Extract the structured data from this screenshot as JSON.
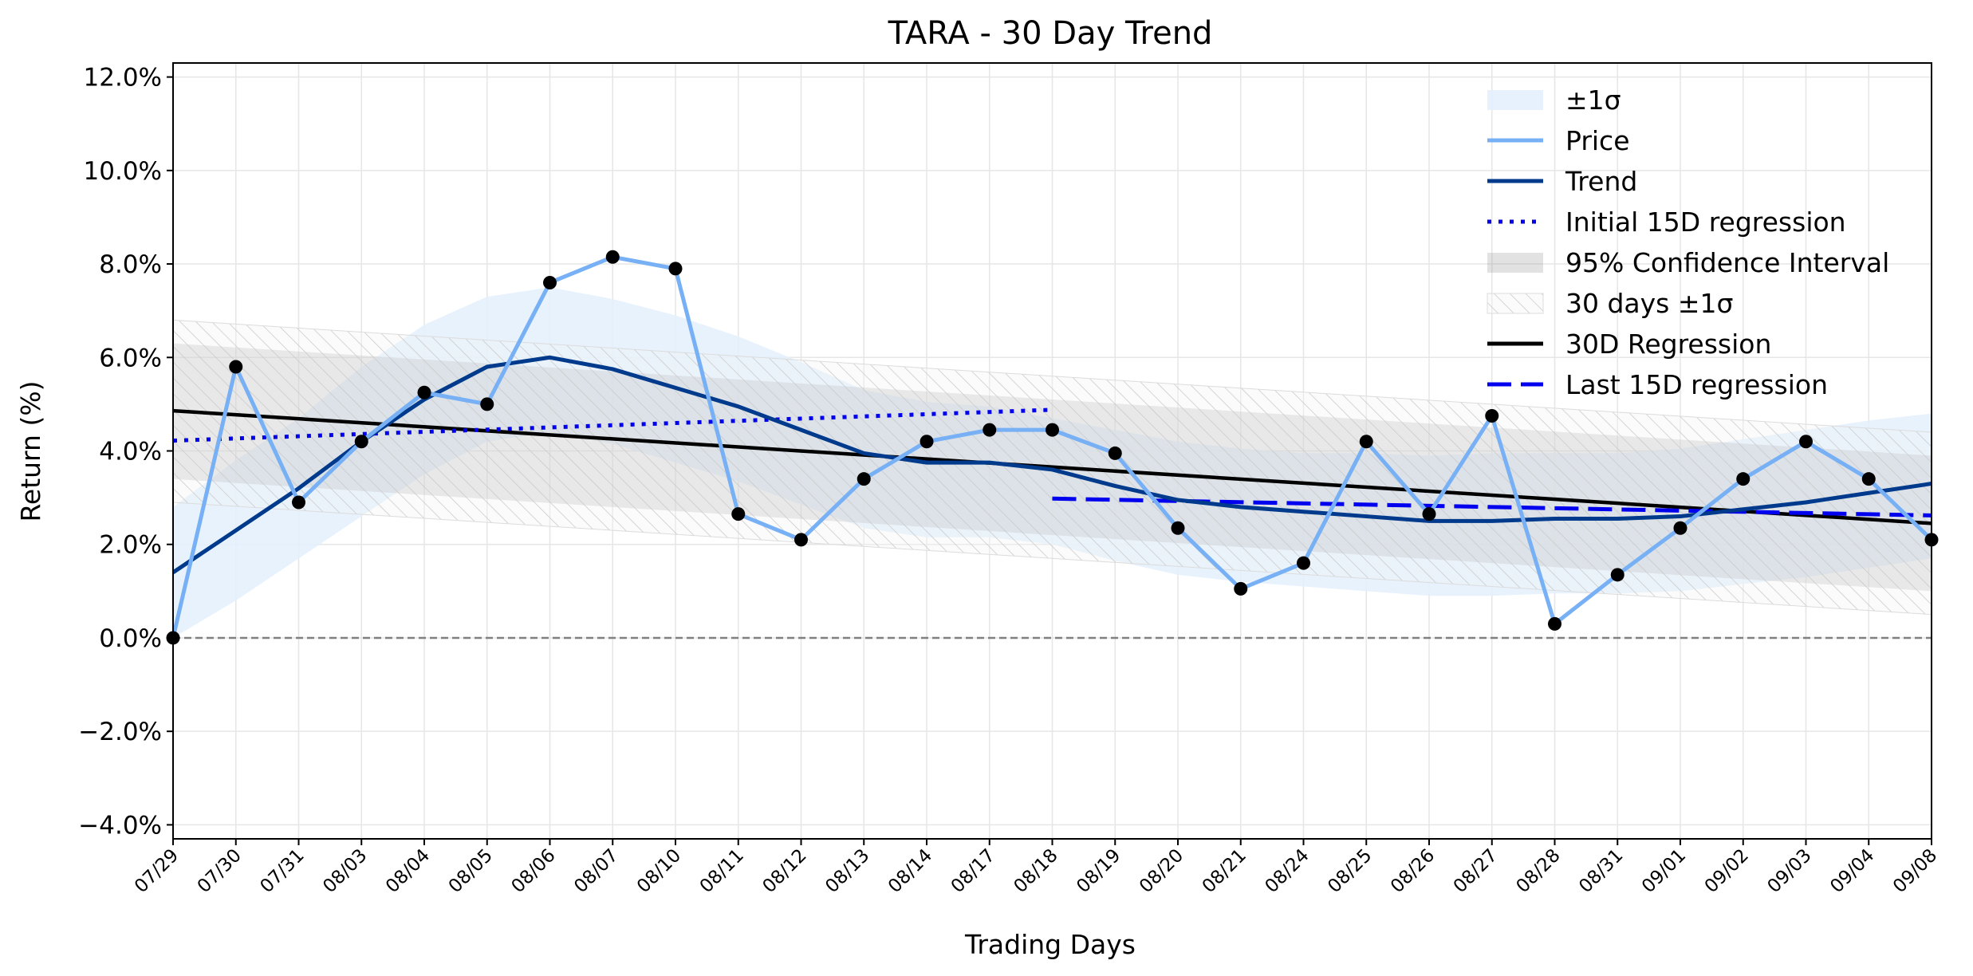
{
  "chart_data": {
    "type": "line",
    "title": "TARA - 30 Day Trend",
    "xlabel": "Trading Days",
    "ylabel": "Return (%)",
    "ylim": [
      -4.3,
      12.3
    ],
    "yticks": [
      -4,
      -2,
      0,
      2,
      4,
      6,
      8,
      10,
      12
    ],
    "ytick_labels": [
      "−4.0%",
      "−2.0%",
      "0.0%",
      "2.0%",
      "4.0%",
      "6.0%",
      "8.0%",
      "10.0%",
      "12.0%"
    ],
    "categories": [
      "07/29",
      "07/30",
      "07/31",
      "08/03",
      "08/04",
      "08/05",
      "08/06",
      "08/07",
      "08/10",
      "08/11",
      "08/12",
      "08/13",
      "08/14",
      "08/17",
      "08/18",
      "08/19",
      "08/20",
      "08/21",
      "08/24",
      "08/25",
      "08/26",
      "08/27",
      "08/28",
      "08/31",
      "09/01",
      "09/02",
      "09/03",
      "09/04",
      "09/08"
    ],
    "grid": true,
    "legend_position": "top-right",
    "zero_line": 0,
    "series": [
      {
        "name": "Price",
        "kind": "line",
        "color": "#77b0f5",
        "values": [
          0.0,
          5.8,
          2.9,
          4.2,
          5.25,
          5.0,
          7.6,
          8.15,
          7.9,
          2.65,
          2.1,
          3.4,
          4.2,
          4.45,
          4.45,
          3.95,
          2.35,
          1.05,
          1.6,
          4.2,
          2.65,
          4.75,
          0.3,
          1.35,
          2.35,
          3.4,
          4.2,
          3.4,
          2.1
        ]
      },
      {
        "name": "Trend",
        "kind": "line",
        "color": "#003a8c",
        "values": [
          1.4,
          2.3,
          3.2,
          4.2,
          5.1,
          5.8,
          6.0,
          5.75,
          5.35,
          4.95,
          4.45,
          3.95,
          3.75,
          3.75,
          3.6,
          3.25,
          2.95,
          2.8,
          2.7,
          2.6,
          2.5,
          2.5,
          2.55,
          2.55,
          2.6,
          2.75,
          2.9,
          3.1,
          3.3
        ]
      },
      {
        "name": "±1σ",
        "kind": "band",
        "color": "#e3f0fd",
        "lower": [
          0.0,
          0.8,
          1.7,
          2.6,
          3.5,
          4.2,
          4.4,
          4.15,
          3.75,
          3.35,
          2.85,
          2.35,
          2.15,
          2.15,
          2.0,
          1.65,
          1.35,
          1.2,
          1.1,
          1.0,
          0.9,
          0.9,
          0.95,
          0.95,
          1.0,
          1.15,
          1.3,
          1.5,
          1.7
        ],
        "upper": [
          2.8,
          3.8,
          4.7,
          5.8,
          6.7,
          7.3,
          7.5,
          7.25,
          6.9,
          6.45,
          5.9,
          5.3,
          5.05,
          4.95,
          4.7,
          4.45,
          4.2,
          4.05,
          3.95,
          3.95,
          3.9,
          3.95,
          3.95,
          3.95,
          4.05,
          4.25,
          4.45,
          4.65,
          4.8
        ]
      },
      {
        "name": "Initial 15D regression",
        "kind": "line",
        "style": "dotted",
        "color": "#0000ee",
        "x_range": [
          0,
          14
        ],
        "endpoints": [
          4.22,
          4.88
        ]
      },
      {
        "name": "95% Confidence Interval",
        "kind": "band",
        "color": "#d9d9d9",
        "x_range": [
          0,
          28
        ],
        "lower_endpoints": [
          3.4,
          1.0
        ],
        "upper_endpoints": [
          6.3,
          3.9
        ]
      },
      {
        "name": "30 days ±1σ",
        "kind": "band",
        "style": "hatched",
        "color": "#cfcfcf",
        "x_range": [
          0,
          28
        ],
        "lower_endpoints": [
          2.9,
          0.5
        ],
        "upper_endpoints": [
          6.8,
          4.4
        ]
      },
      {
        "name": "30D Regression",
        "kind": "line",
        "color": "#000000",
        "x_range": [
          0,
          28
        ],
        "endpoints": [
          4.86,
          2.45
        ]
      },
      {
        "name": "Last 15D regression",
        "kind": "line",
        "style": "dashed",
        "color": "#0000ee",
        "x_range": [
          14,
          28
        ],
        "endpoints": [
          2.98,
          2.62
        ]
      }
    ],
    "legend": [
      "±1σ",
      "Price",
      "Trend",
      "Initial 15D regression",
      "95% Confidence Interval",
      "30 days ±1σ",
      "30D Regression",
      "Last 15D regression"
    ]
  }
}
